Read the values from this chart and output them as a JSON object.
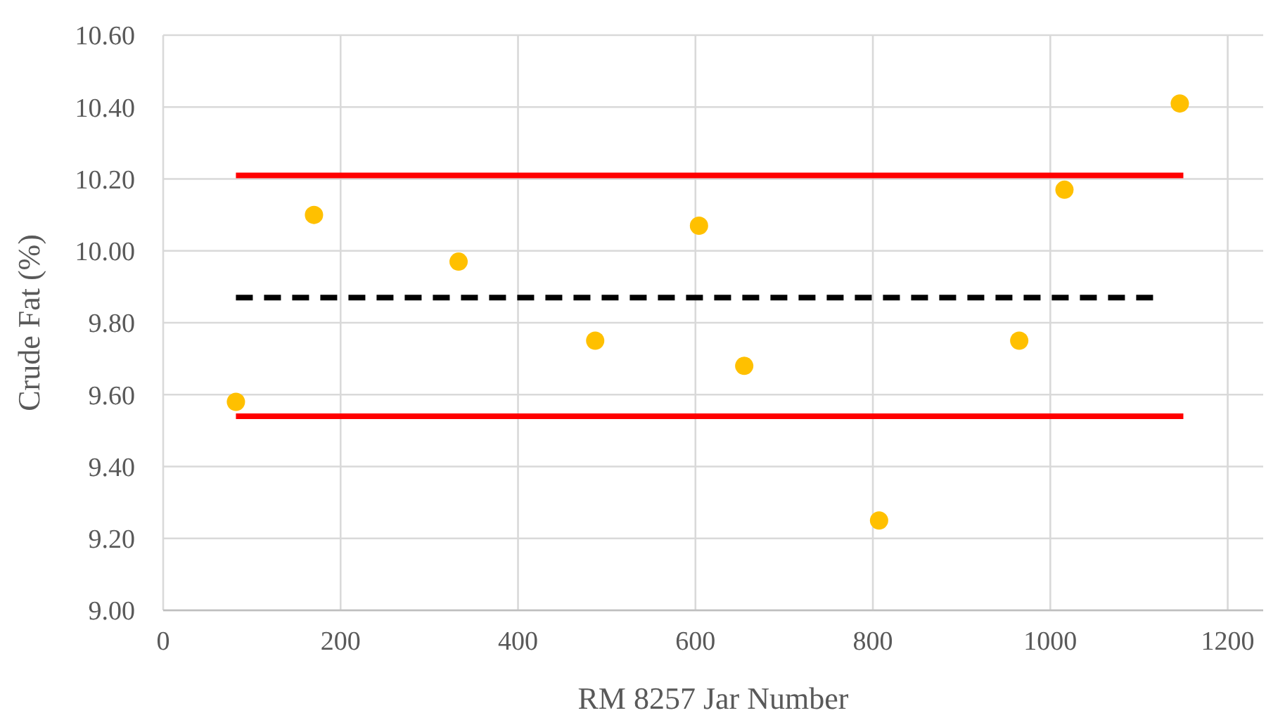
{
  "chart_data": {
    "type": "scatter",
    "xlabel": "RM 8257 Jar Number",
    "ylabel": "Crude Fat (%)",
    "xlim": [
      0,
      1240
    ],
    "xticks": [
      0,
      200,
      400,
      600,
      800,
      1000,
      1200
    ],
    "ylim": [
      9,
      10.6
    ],
    "yticks": [
      {
        "value": 9,
        "label": "9.00"
      },
      {
        "value": 9.2,
        "label": "9.20"
      },
      {
        "value": 9.4,
        "label": "9.40"
      },
      {
        "value": 9.6,
        "label": "9.60"
      },
      {
        "value": 9.8,
        "label": "9.80"
      },
      {
        "value": 10,
        "label": "10.00"
      },
      {
        "value": 10.2,
        "label": "10.20"
      },
      {
        "value": 10.4,
        "label": "10.40"
      },
      {
        "value": 10.6,
        "label": "10.60"
      }
    ],
    "grid": true,
    "series": [
      {
        "type": "line",
        "color": "#ff0000",
        "line_style": "solid",
        "x": [
          82,
          1150
        ],
        "values": [
          10.21,
          10.21
        ]
      },
      {
        "type": "line",
        "color": "#ff0000",
        "line_style": "solid",
        "x": [
          82,
          1150
        ],
        "values": [
          9.54,
          9.54
        ]
      },
      {
        "type": "line",
        "color": "#000000",
        "line_style": "dashed",
        "x": [
          82,
          1116
        ],
        "values": [
          9.87,
          9.87
        ]
      },
      {
        "marker": "circle",
        "color": "#ffc000",
        "x": [
          82,
          170,
          333,
          487,
          604,
          655,
          807,
          965,
          1016,
          1146
        ],
        "values": [
          9.58,
          10.1,
          9.97,
          9.75,
          10.07,
          9.68,
          9.25,
          9.75,
          10.17,
          10.41
        ]
      }
    ]
  }
}
